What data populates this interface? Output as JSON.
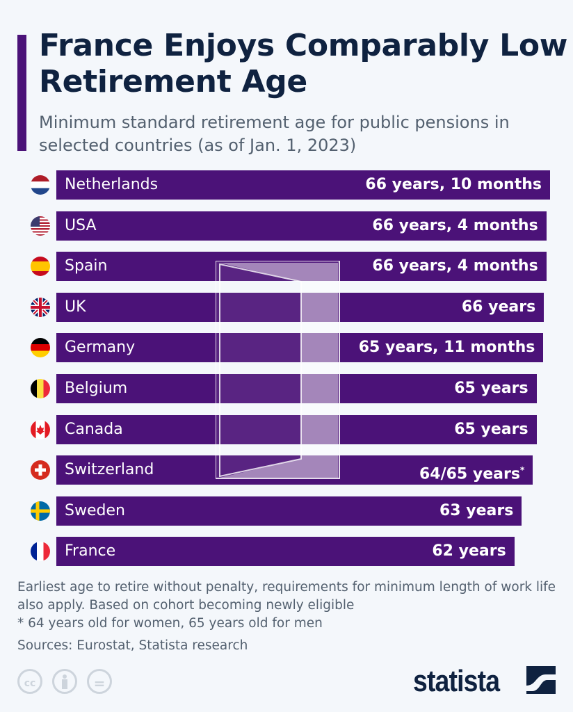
{
  "title": "France Enjoys Comparably Low Retirement Age",
  "subtitle": "Minimum standard retirement age for public pensions in selected countries (as of Jan. 1, 2023)",
  "chart_data": {
    "type": "bar",
    "orientation": "horizontal",
    "title": "France Enjoys Comparably Low Retirement Age",
    "subtitle": "Minimum standard retirement age for public pensions in selected countries (as of Jan. 1, 2023)",
    "categories": [
      "Netherlands",
      "USA",
      "Spain",
      "UK",
      "Germany",
      "Belgium",
      "Canada",
      "Switzerland",
      "Sweden",
      "France"
    ],
    "values": [
      66.83,
      66.33,
      66.33,
      66,
      65.92,
      65,
      65,
      64.5,
      63,
      62
    ],
    "value_labels": [
      "66 years, 10 months",
      "66 years, 4 months",
      "66 years, 4 months",
      "66 years",
      "65 years, 11 months",
      "65 years",
      "65 years",
      "64/65 years",
      "63 years",
      "62 years"
    ],
    "value_label_marks": [
      "",
      "",
      "",
      "",
      "",
      "",
      "",
      "*",
      "",
      ""
    ],
    "flags": [
      "netherlands",
      "usa",
      "spain",
      "uk",
      "germany",
      "belgium",
      "canada",
      "switzerland",
      "sweden",
      "france"
    ],
    "bar_color": "#4b1278",
    "grid": false
  },
  "notes": {
    "line1": "Earliest age to retire without penalty, requirements for minimum length of work life also apply. Based on cohort becoming newly eligible",
    "line2": "* 64 years old for women, 65 years old for men",
    "sources": "Sources: Eurostat, Statista research"
  },
  "license_icons": [
    "cc",
    "by",
    "nd"
  ],
  "license_text": {
    "cc": "cc",
    "nd": "="
  },
  "logo": "statista"
}
